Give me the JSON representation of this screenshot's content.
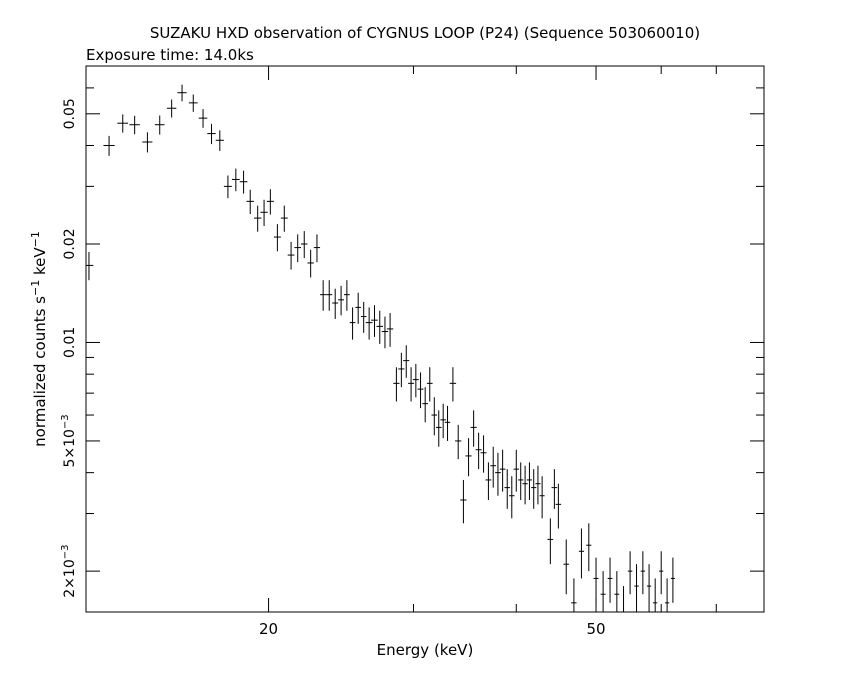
{
  "chart_data": {
    "type": "scatter",
    "title": "SUZAKU HXD observation of CYGNUS LOOP (P24) (Sequence 503060010)",
    "subtitle": "Exposure time: 14.0ks",
    "xlabel": "Energy (keV)",
    "ylabel_base": "normalized counts s",
    "ylabel_exp1": "−1",
    "ylabel_mid": " keV",
    "ylabel_exp2": "−1",
    "x_scale": "log",
    "y_scale": "log",
    "xlim": [
      12,
      80
    ],
    "ylim": [
      0.0015,
      0.07
    ],
    "x_ticks": [
      {
        "value": 20,
        "label": "20"
      },
      {
        "value": 50,
        "label": "50"
      }
    ],
    "y_ticks": [
      {
        "value": 0.05,
        "mantissa": "0.05",
        "exp": ""
      },
      {
        "value": 0.02,
        "mantissa": "0.02",
        "exp": ""
      },
      {
        "value": 0.01,
        "mantissa": "0.01",
        "exp": ""
      },
      {
        "value": 0.005,
        "mantissa": "5×10",
        "exp": "−3"
      },
      {
        "value": 0.002,
        "mantissa": "2×10",
        "exp": "−3"
      }
    ],
    "grid": false,
    "legend": "none",
    "series": [
      {
        "points": [
          [
            12.1,
            0.0172,
            0.0017,
            0.15
          ],
          [
            12.8,
            0.04,
            0.0028,
            0.2
          ],
          [
            13.3,
            0.0468,
            0.003,
            0.2
          ],
          [
            13.75,
            0.0463,
            0.003,
            0.2
          ],
          [
            14.25,
            0.041,
            0.0029,
            0.2
          ],
          [
            14.75,
            0.0463,
            0.0031,
            0.2
          ],
          [
            15.25,
            0.052,
            0.0033,
            0.2
          ],
          [
            15.7,
            0.058,
            0.0034,
            0.2
          ],
          [
            16.2,
            0.054,
            0.0033,
            0.2
          ],
          [
            16.65,
            0.0485,
            0.0032,
            0.2
          ],
          [
            17.05,
            0.0435,
            0.0031,
            0.2
          ],
          [
            17.45,
            0.0415,
            0.003,
            0.2
          ],
          [
            17.85,
            0.03,
            0.0024,
            0.2
          ],
          [
            18.25,
            0.0315,
            0.0025,
            0.2
          ],
          [
            18.65,
            0.031,
            0.0025,
            0.2
          ],
          [
            19.0,
            0.027,
            0.0023,
            0.2
          ],
          [
            19.4,
            0.024,
            0.0022,
            0.2
          ],
          [
            19.75,
            0.025,
            0.0023,
            0.2
          ],
          [
            20.1,
            0.027,
            0.0024,
            0.2
          ],
          [
            20.5,
            0.021,
            0.002,
            0.2
          ],
          [
            20.9,
            0.024,
            0.0022,
            0.2
          ],
          [
            21.3,
            0.0185,
            0.0018,
            0.2
          ],
          [
            21.7,
            0.0195,
            0.0019,
            0.2
          ],
          [
            22.1,
            0.02,
            0.0019,
            0.2
          ],
          [
            22.5,
            0.0175,
            0.0017,
            0.2
          ],
          [
            22.9,
            0.0195,
            0.0019,
            0.2
          ],
          [
            23.3,
            0.014,
            0.0015,
            0.2
          ],
          [
            23.7,
            0.014,
            0.0015,
            0.2
          ],
          [
            24.1,
            0.0132,
            0.0014,
            0.2
          ],
          [
            24.5,
            0.0135,
            0.0014,
            0.2
          ],
          [
            24.9,
            0.014,
            0.0015,
            0.2
          ],
          [
            25.3,
            0.0115,
            0.0013,
            0.2
          ],
          [
            25.7,
            0.0128,
            0.0014,
            0.2
          ],
          [
            26.1,
            0.012,
            0.0013,
            0.2
          ],
          [
            26.5,
            0.0115,
            0.0013,
            0.25
          ],
          [
            26.9,
            0.0117,
            0.0013,
            0.25
          ],
          [
            27.3,
            0.0112,
            0.0013,
            0.25
          ],
          [
            27.7,
            0.0108,
            0.0012,
            0.25
          ],
          [
            28.1,
            0.011,
            0.0013,
            0.25
          ],
          [
            28.6,
            0.0075,
            0.0009,
            0.25
          ],
          [
            29.0,
            0.0083,
            0.001,
            0.25
          ],
          [
            29.4,
            0.0088,
            0.001,
            0.25
          ],
          [
            29.8,
            0.0075,
            0.0009,
            0.25
          ],
          [
            30.2,
            0.0077,
            0.0009,
            0.25
          ],
          [
            30.6,
            0.0072,
            0.0009,
            0.25
          ],
          [
            31.0,
            0.0065,
            0.0008,
            0.25
          ],
          [
            31.4,
            0.0075,
            0.0009,
            0.25
          ],
          [
            31.8,
            0.006,
            0.0008,
            0.25
          ],
          [
            32.2,
            0.0055,
            0.0007,
            0.25
          ],
          [
            32.6,
            0.0058,
            0.0007,
            0.25
          ],
          [
            33.0,
            0.0057,
            0.0007,
            0.25
          ],
          [
            33.5,
            0.0075,
            0.0009,
            0.3
          ],
          [
            34.0,
            0.005,
            0.0006,
            0.3
          ],
          [
            34.5,
            0.0033,
            0.0005,
            0.3
          ],
          [
            35.0,
            0.0045,
            0.0006,
            0.3
          ],
          [
            35.5,
            0.0055,
            0.0007,
            0.3
          ],
          [
            36.0,
            0.0047,
            0.0006,
            0.3
          ],
          [
            36.5,
            0.0046,
            0.0006,
            0.3
          ],
          [
            37.0,
            0.0038,
            0.0005,
            0.3
          ],
          [
            37.5,
            0.0042,
            0.0006,
            0.3
          ],
          [
            38.0,
            0.004,
            0.0006,
            0.3
          ],
          [
            38.5,
            0.0041,
            0.0006,
            0.3
          ],
          [
            39.0,
            0.0036,
            0.0005,
            0.3
          ],
          [
            39.5,
            0.0034,
            0.0005,
            0.3
          ],
          [
            40.0,
            0.0041,
            0.0006,
            0.3
          ],
          [
            40.5,
            0.0038,
            0.0005,
            0.3
          ],
          [
            41.0,
            0.0037,
            0.0005,
            0.3
          ],
          [
            41.5,
            0.0038,
            0.0005,
            0.3
          ],
          [
            42.0,
            0.0036,
            0.0005,
            0.3
          ],
          [
            42.5,
            0.0037,
            0.0005,
            0.3
          ],
          [
            43.0,
            0.0034,
            0.0005,
            0.3
          ],
          [
            44.0,
            0.0025,
            0.0004,
            0.35
          ],
          [
            44.5,
            0.0036,
            0.0005,
            0.35
          ],
          [
            45.0,
            0.0032,
            0.0005,
            0.35
          ],
          [
            46.0,
            0.0021,
            0.0004,
            0.35
          ],
          [
            47.0,
            0.0016,
            0.0003,
            0.35
          ],
          [
            48.0,
            0.0023,
            0.0004,
            0.35
          ],
          [
            49.0,
            0.0024,
            0.0004,
            0.35
          ],
          [
            50.0,
            0.0019,
            0.0003,
            0.35
          ],
          [
            51.0,
            0.0017,
            0.0003,
            0.35
          ],
          [
            52.0,
            0.0019,
            0.0003,
            0.35
          ],
          [
            53.0,
            0.0017,
            0.0003,
            0.35
          ],
          [
            54.0,
            0.0015,
            0.0003,
            0.35
          ],
          [
            55.0,
            0.002,
            0.0003,
            0.35
          ],
          [
            56.0,
            0.0018,
            0.0003,
            0.35
          ],
          [
            57.0,
            0.002,
            0.0003,
            0.35
          ],
          [
            58.0,
            0.0018,
            0.0003,
            0.35
          ],
          [
            59.0,
            0.0016,
            0.0003,
            0.35
          ],
          [
            60.0,
            0.002,
            0.0003,
            0.35
          ],
          [
            61.0,
            0.0016,
            0.0003,
            0.35
          ],
          [
            62.0,
            0.0019,
            0.0003,
            0.35
          ]
        ]
      }
    ]
  }
}
